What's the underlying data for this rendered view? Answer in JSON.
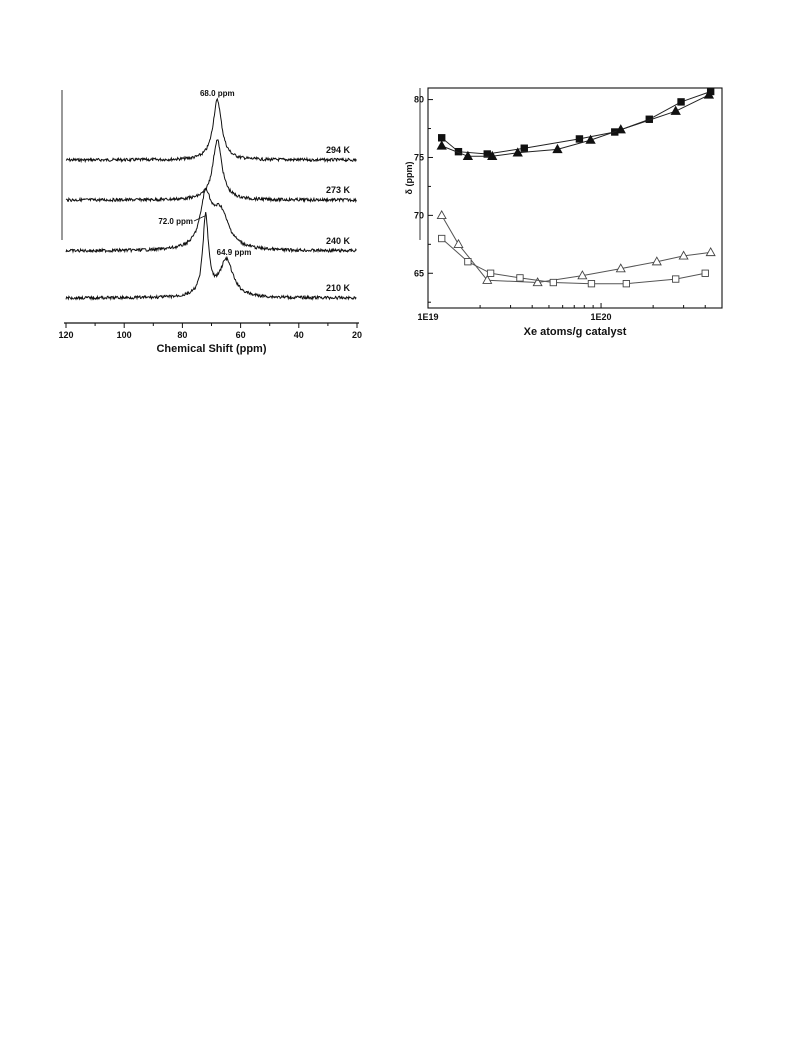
{
  "chart_data": [
    {
      "type": "line",
      "xlabel": "Chemical Shift (ppm)",
      "ylabel": "",
      "x_reversed": true,
      "xlim": [
        120,
        20
      ],
      "x_ticks": [
        "120",
        "100",
        "80",
        "60",
        "40",
        "20"
      ],
      "grid": false,
      "series": [
        {
          "name": "294 K",
          "peaks": [
            {
              "center": 68.0,
              "height": 1.0,
              "width": 1.8
            }
          ]
        },
        {
          "name": "273 K",
          "peaks": [
            {
              "center": 68.0,
              "height": 1.0,
              "width": 1.9
            }
          ]
        },
        {
          "name": "240 K",
          "peaks": [
            {
              "center": 72.0,
              "height": 0.85,
              "width": 2.2
            },
            {
              "center": 67.0,
              "height": 0.65,
              "width": 3.5
            }
          ]
        },
        {
          "name": "210 K",
          "peaks": [
            {
              "center": 72.0,
              "height": 0.97,
              "width": 1.2
            },
            {
              "center": 64.9,
              "height": 0.45,
              "width": 2.8
            }
          ]
        }
      ],
      "annotations": [
        {
          "text": "68.0 ppm",
          "x": 68.0
        },
        {
          "text": "72.0 ppm",
          "x": 72.0
        },
        {
          "text": "64.9 ppm",
          "x": 64.9
        }
      ]
    },
    {
      "type": "scatter",
      "xlabel": "Xe atoms/g catalyst",
      "ylabel": "δ (ppm)",
      "x_scale": "log",
      "xlim": [
        1e+19,
        5e+20
      ],
      "ylim": [
        62,
        81
      ],
      "x_ticks": [
        {
          "value": 1e+19,
          "label": "1E19"
        },
        {
          "value": 1e+20,
          "label": "1E20"
        }
      ],
      "y_ticks": [
        {
          "value": 65,
          "label": "65"
        },
        {
          "value": 70,
          "label": "70"
        },
        {
          "value": 75,
          "label": "75"
        },
        {
          "value": 80,
          "label": "80"
        }
      ],
      "grid": false,
      "series": [
        {
          "marker": "filled-square",
          "x": [
            1.2e+19,
            1.5e+19,
            2.2e+19,
            3.6e+19,
            7.5e+19,
            1.2e+20,
            1.9e+20,
            2.9e+20,
            4.3e+20
          ],
          "y": [
            76.7,
            75.5,
            75.3,
            75.8,
            76.6,
            77.2,
            78.3,
            79.8,
            80.7
          ]
        },
        {
          "marker": "filled-triangle",
          "x": [
            1.2e+19,
            1.7e+19,
            2.35e+19,
            3.3e+19,
            5.6e+19,
            8.7e+19,
            1.3e+20,
            2.7e+20,
            4.2e+20
          ],
          "y": [
            76.0,
            75.1,
            75.1,
            75.4,
            75.7,
            76.5,
            77.4,
            79.0,
            80.4
          ]
        },
        {
          "marker": "open-triangle",
          "x": [
            1.2e+19,
            1.5e+19,
            2.2e+19,
            4.3e+19,
            7.8e+19,
            1.3e+20,
            2.1e+20,
            3e+20,
            4.3e+20
          ],
          "y": [
            70.0,
            67.5,
            64.4,
            64.2,
            64.8,
            65.4,
            66.0,
            66.5,
            66.8
          ]
        },
        {
          "marker": "open-square",
          "x": [
            1.2e+19,
            1.7e+19,
            2.3e+19,
            3.4e+19,
            5.3e+19,
            8.8e+19,
            1.4e+20,
            2.7e+20,
            4e+20
          ],
          "y": [
            68.0,
            66.0,
            65.0,
            64.6,
            64.2,
            64.1,
            64.1,
            64.5,
            65.0
          ]
        }
      ]
    }
  ]
}
